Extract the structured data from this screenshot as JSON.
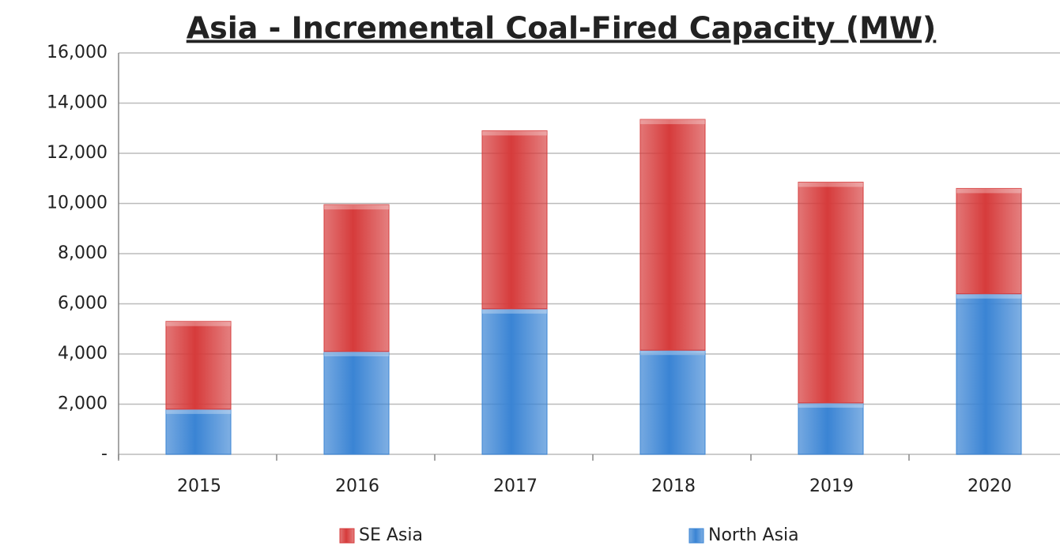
{
  "chart_data": {
    "type": "stacked_bar",
    "title": "Asia - Incremental Coal-Fired Capacity (MW)",
    "categories": [
      "2015",
      "2016",
      "2017",
      "2018",
      "2019",
      "2020"
    ],
    "series": [
      {
        "name": "North Asia",
        "color": "#3a84d4",
        "values": [
          1800,
          4100,
          5800,
          4150,
          2050,
          6400
        ]
      },
      {
        "name": "SE Asia",
        "color": "#d63b3b",
        "values": [
          3500,
          5850,
          7100,
          9200,
          8800,
          4200
        ]
      }
    ],
    "ylim": [
      0,
      16000
    ],
    "yticks": [
      {
        "value": 0,
        "label": "-"
      },
      {
        "value": 2000,
        "label": "2,000"
      },
      {
        "value": 4000,
        "label": "4,000"
      },
      {
        "value": 6000,
        "label": "6,000"
      },
      {
        "value": 8000,
        "label": "8,000"
      },
      {
        "value": 10000,
        "label": "10,000"
      },
      {
        "value": 12000,
        "label": "12,000"
      },
      {
        "value": 14000,
        "label": "14,000"
      },
      {
        "value": 16000,
        "label": "16,000"
      }
    ],
    "grid": true,
    "legend": "bottom"
  }
}
